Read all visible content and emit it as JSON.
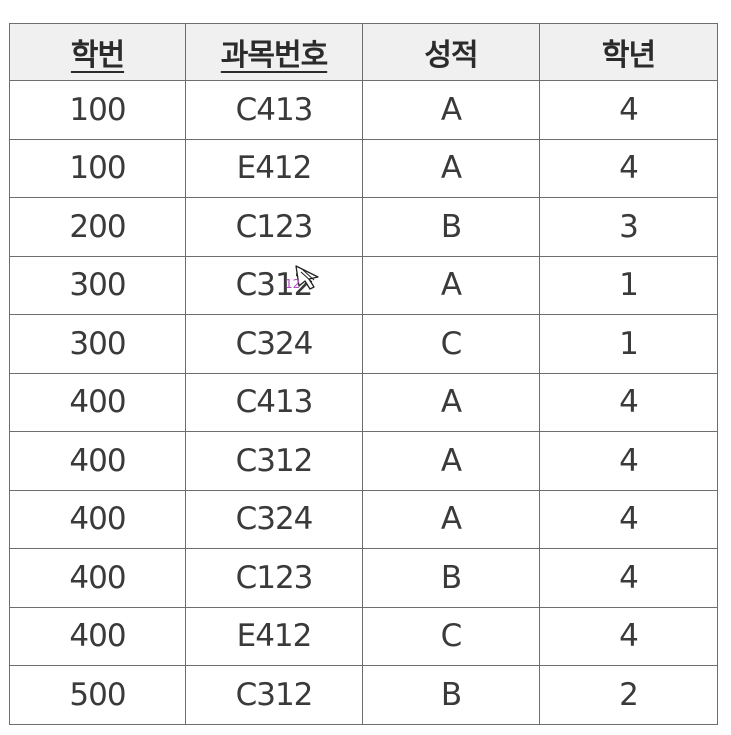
{
  "table": {
    "headers": [
      {
        "label": "학번",
        "underlined": true
      },
      {
        "label": "과목번호",
        "underlined": true
      },
      {
        "label": "성적",
        "underlined": false
      },
      {
        "label": "학년",
        "underlined": false
      }
    ],
    "rows": [
      [
        "100",
        "C413",
        "A",
        "4"
      ],
      [
        "100",
        "E412",
        "A",
        "4"
      ],
      [
        "200",
        "C123",
        "B",
        "3"
      ],
      [
        "300",
        "C312",
        "A",
        "1"
      ],
      [
        "300",
        "C324",
        "C",
        "1"
      ],
      [
        "400",
        "C413",
        "A",
        "4"
      ],
      [
        "400",
        "C312",
        "A",
        "4"
      ],
      [
        "400",
        "C324",
        "A",
        "4"
      ],
      [
        "400",
        "C123",
        "B",
        "4"
      ],
      [
        "400",
        "E412",
        "C",
        "4"
      ],
      [
        "500",
        "C312",
        "B",
        "2"
      ]
    ]
  },
  "cursor": {
    "icon": "move-cursor-icon",
    "tag": "12"
  },
  "colors": {
    "border": "#6e6e6e",
    "header_bg": "#f0f0f0",
    "text": "#3a3a3a",
    "cursor_tag": "#b44cc4"
  }
}
